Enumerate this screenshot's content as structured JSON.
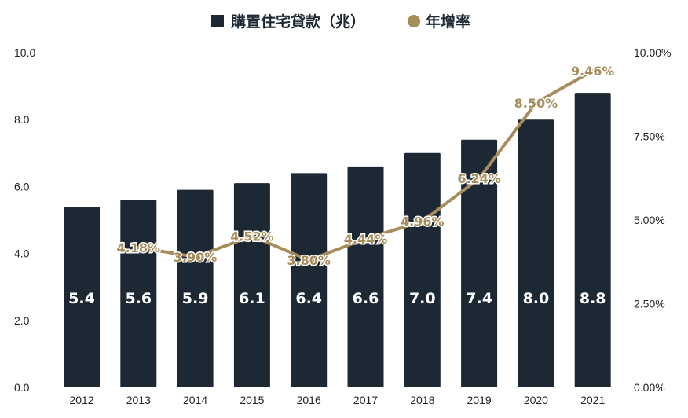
{
  "chart_data": {
    "type": "bar",
    "categories": [
      "2012",
      "2013",
      "2014",
      "2015",
      "2016",
      "2017",
      "2018",
      "2019",
      "2020",
      "2021"
    ],
    "series": [
      {
        "name": "購置住宅貸款（兆）",
        "type": "bar",
        "axis": "left",
        "values": [
          5.4,
          5.6,
          5.9,
          6.1,
          6.4,
          6.6,
          7.0,
          7.4,
          8.0,
          8.8
        ],
        "labels": [
          "5.4",
          "5.6",
          "5.9",
          "6.1",
          "6.4",
          "6.6",
          "7.0",
          "7.4",
          "8.0",
          "8.8"
        ],
        "color": "#1c2833"
      },
      {
        "name": "年增率",
        "type": "line",
        "axis": "right",
        "x": [
          "2013",
          "2014",
          "2015",
          "2016",
          "2017",
          "2018",
          "2019",
          "2020",
          "2021"
        ],
        "values": [
          4.18,
          3.9,
          4.52,
          3.8,
          4.44,
          4.96,
          6.24,
          8.5,
          9.46
        ],
        "labels": [
          "4.18%",
          "3.90%",
          "4.52%",
          "3.80%",
          "4.44%",
          "4.96%",
          "6.24%",
          "8.50%",
          "9.46%"
        ],
        "color": "#a88d5c"
      }
    ],
    "y_left": {
      "min": 0,
      "max": 10,
      "ticks": [
        "0.0",
        "2.0",
        "4.0",
        "6.0",
        "8.0",
        "10.0"
      ]
    },
    "y_right": {
      "min": 0,
      "max": 10,
      "ticks": [
        "0.00%",
        "2.50%",
        "5.00%",
        "7.50%",
        "10.00%"
      ]
    },
    "legend": {
      "position": "top-center",
      "bar_entry": "購置住宅貸款（兆）",
      "line_entry": "年增率"
    },
    "grid": false
  }
}
